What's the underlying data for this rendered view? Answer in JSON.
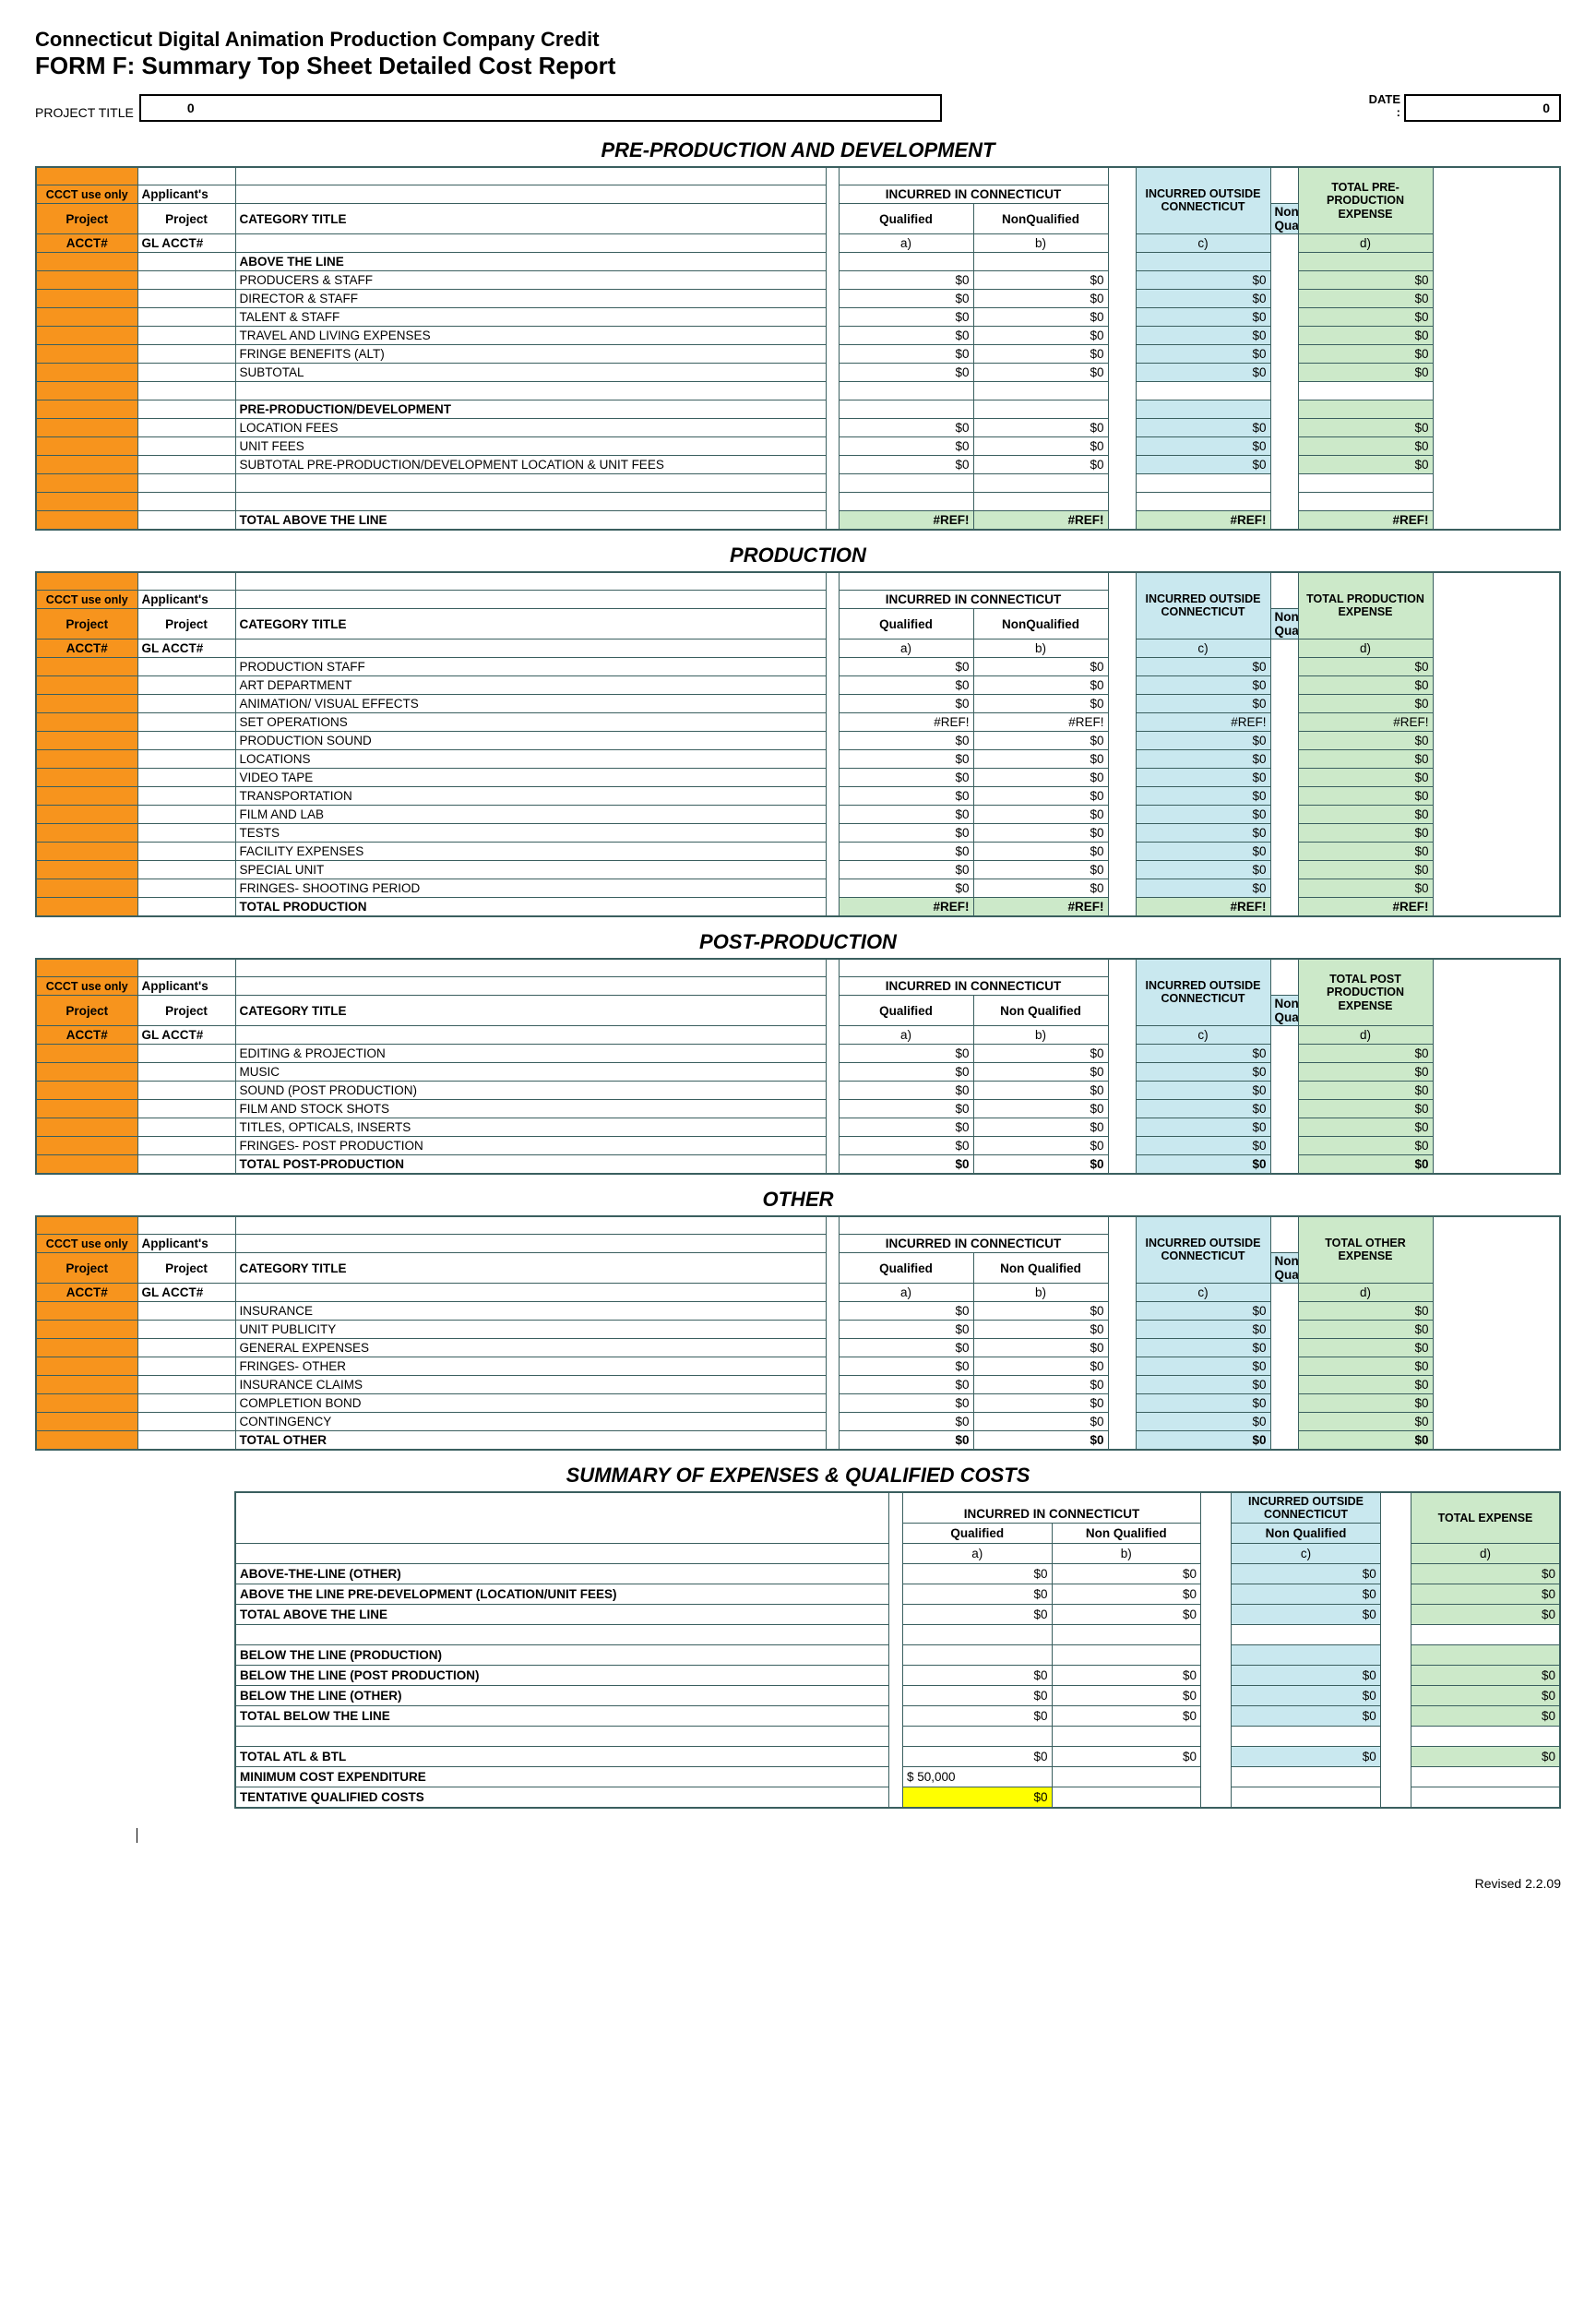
{
  "header": {
    "line1": "Connecticut Digital Animation Production Company Credit",
    "line2": "FORM F:  Summary Top Sheet Detailed Cost Report",
    "project_title_label": "PROJECT TITLE",
    "project_title_value": "0",
    "date_label": "DATE:",
    "date_value": "0"
  },
  "labels": {
    "ccct": "CCCT use only",
    "applicants": "Applicant's",
    "project": "Project",
    "acct": "ACCT#",
    "gl_acct": "GL ACCT#",
    "category_title": "CATEGORY TITLE",
    "in_ct": "INCURRED IN CONNECTICUT",
    "qualified": "Qualified",
    "nonqualified": "NonQualified",
    "nonqualified_sp": "Non Qualified",
    "out_ct": "INCURRED OUTSIDE CONNECTICUT",
    "a": "a)",
    "b": "b)",
    "c": "c)",
    "d": "d)"
  },
  "zero": "$0",
  "ref": "#REF!",
  "sections": [
    {
      "title": "PRE-PRODUCTION AND DEVELOPMENT",
      "total_label": "TOTAL PRE-PRODUCTION EXPENSE",
      "nq_spaced": false,
      "blocks": [
        {
          "heading": "ABOVE THE LINE",
          "rows": [
            {
              "cat": "PRODUCERS & STAFF",
              "v": [
                "$0",
                "$0",
                "$0",
                "$0"
              ]
            },
            {
              "cat": "DIRECTOR & STAFF",
              "v": [
                "$0",
                "$0",
                "$0",
                "$0"
              ]
            },
            {
              "cat": "TALENT & STAFF",
              "v": [
                "$0",
                "$0",
                "$0",
                "$0"
              ]
            },
            {
              "cat": "TRAVEL AND LIVING EXPENSES",
              "v": [
                "$0",
                "$0",
                "$0",
                "$0"
              ]
            },
            {
              "cat": "FRINGE BENEFITS (ALT)",
              "v": [
                "$0",
                "$0",
                "$0",
                "$0"
              ]
            },
            {
              "cat": "SUBTOTAL",
              "v": [
                "$0",
                "$0",
                "$0",
                "$0"
              ]
            }
          ]
        },
        {
          "gap": true
        },
        {
          "heading": "PRE-PRODUCTION/DEVELOPMENT",
          "rows": [
            {
              "cat": "LOCATION FEES",
              "v": [
                "$0",
                "$0",
                "$0",
                "$0"
              ]
            },
            {
              "cat": "UNIT FEES",
              "v": [
                "$0",
                "$0",
                "$0",
                "$0"
              ]
            },
            {
              "cat": "SUBTOTAL PRE-PRODUCTION/DEVELOPMENT LOCATION & UNIT FEES",
              "v": [
                "$0",
                "$0",
                "$0",
                "$0"
              ]
            }
          ]
        },
        {
          "gap": true
        },
        {
          "gap": true
        },
        {
          "total_row": {
            "cat": "TOTAL ABOVE THE LINE",
            "v": [
              "#REF!",
              "#REF!",
              "#REF!",
              "#REF!"
            ],
            "green": true
          }
        }
      ]
    },
    {
      "title": "PRODUCTION",
      "total_label": "TOTAL PRODUCTION EXPENSE",
      "nq_spaced": false,
      "blocks": [
        {
          "rows": [
            {
              "cat": "PRODUCTION STAFF",
              "v": [
                "$0",
                "$0",
                "$0",
                "$0"
              ]
            },
            {
              "cat": "ART DEPARTMENT",
              "v": [
                "$0",
                "$0",
                "$0",
                "$0"
              ]
            },
            {
              "cat": "ANIMATION/ VISUAL EFFECTS",
              "v": [
                "$0",
                "$0",
                "$0",
                "$0"
              ]
            },
            {
              "cat": "SET OPERATIONS",
              "v": [
                "#REF!",
                "#REF!",
                "#REF!",
                "#REF!"
              ]
            },
            {
              "cat": "PRODUCTION SOUND",
              "v": [
                "$0",
                "$0",
                "$0",
                "$0"
              ]
            },
            {
              "cat": "LOCATIONS",
              "v": [
                "$0",
                "$0",
                "$0",
                "$0"
              ]
            },
            {
              "cat": "VIDEO TAPE",
              "v": [
                "$0",
                "$0",
                "$0",
                "$0"
              ]
            },
            {
              "cat": "TRANSPORTATION",
              "v": [
                "$0",
                "$0",
                "$0",
                "$0"
              ]
            },
            {
              "cat": "FILM AND LAB",
              "v": [
                "$0",
                "$0",
                "$0",
                "$0"
              ]
            },
            {
              "cat": "TESTS",
              "v": [
                "$0",
                "$0",
                "$0",
                "$0"
              ]
            },
            {
              "cat": "FACILITY EXPENSES",
              "v": [
                "$0",
                "$0",
                "$0",
                "$0"
              ]
            },
            {
              "cat": "SPECIAL UNIT",
              "v": [
                "$0",
                "$0",
                "$0",
                "$0"
              ]
            },
            {
              "cat": "FRINGES- SHOOTING PERIOD",
              "v": [
                "$0",
                "$0",
                "$0",
                "$0"
              ]
            }
          ]
        },
        {
          "total_row": {
            "cat": "TOTAL PRODUCTION",
            "v": [
              "#REF!",
              "#REF!",
              "#REF!",
              "#REF!"
            ],
            "green": true
          }
        }
      ]
    },
    {
      "title": "POST-PRODUCTION",
      "total_label": "TOTAL POST PRODUCTION EXPENSE",
      "nq_spaced": true,
      "blocks": [
        {
          "rows": [
            {
              "cat": "EDITING & PROJECTION",
              "v": [
                "$0",
                "$0",
                "$0",
                "$0"
              ]
            },
            {
              "cat": "MUSIC",
              "v": [
                "$0",
                "$0",
                "$0",
                "$0"
              ]
            },
            {
              "cat": "SOUND (POST PRODUCTION)",
              "v": [
                "$0",
                "$0",
                "$0",
                "$0"
              ]
            },
            {
              "cat": "FILM AND STOCK SHOTS",
              "v": [
                "$0",
                "$0",
                "$0",
                "$0"
              ]
            },
            {
              "cat": "TITLES, OPTICALS, INSERTS",
              "v": [
                "$0",
                "$0",
                "$0",
                "$0"
              ]
            },
            {
              "cat": "FRINGES- POST PRODUCTION",
              "v": [
                "$0",
                "$0",
                "$0",
                "$0"
              ]
            }
          ]
        },
        {
          "total_row": {
            "cat": "TOTAL POST-PRODUCTION",
            "v": [
              "$0",
              "$0",
              "$0",
              "$0"
            ],
            "green": false
          }
        }
      ]
    },
    {
      "title": "OTHER",
      "total_label": "TOTAL OTHER EXPENSE",
      "nq_spaced": true,
      "blocks": [
        {
          "rows": [
            {
              "cat": "INSURANCE",
              "v": [
                "$0",
                "$0",
                "$0",
                "$0"
              ]
            },
            {
              "cat": "UNIT PUBLICITY",
              "v": [
                "$0",
                "$0",
                "$0",
                "$0"
              ]
            },
            {
              "cat": "GENERAL EXPENSES",
              "v": [
                "$0",
                "$0",
                "$0",
                "$0"
              ]
            },
            {
              "cat": "FRINGES- OTHER",
              "v": [
                "$0",
                "$0",
                "$0",
                "$0"
              ]
            },
            {
              "cat": "INSURANCE CLAIMS",
              "v": [
                "$0",
                "$0",
                "$0",
                "$0"
              ]
            },
            {
              "cat": "COMPLETION BOND",
              "v": [
                "$0",
                "$0",
                "$0",
                "$0"
              ]
            },
            {
              "cat": "CONTINGENCY",
              "v": [
                "$0",
                "$0",
                "$0",
                "$0"
              ]
            }
          ]
        },
        {
          "total_row": {
            "cat": "TOTAL OTHER",
            "v": [
              "$0",
              "$0",
              "$0",
              "$0"
            ],
            "green": false
          }
        }
      ]
    }
  ],
  "summary": {
    "title": "SUMMARY OF EXPENSES & QUALIFIED COSTS",
    "total_label": "TOTAL EXPENSE",
    "rows": [
      {
        "cat": "ABOVE-THE-LINE (OTHER)",
        "b": true,
        "v": [
          "$0",
          "$0",
          "$0",
          "$0"
        ]
      },
      {
        "cat": "ABOVE THE LINE PRE-DEVELOPMENT (LOCATION/UNIT FEES)",
        "b": true,
        "v": [
          "$0",
          "$0",
          "$0",
          "$0"
        ]
      },
      {
        "cat": "TOTAL ABOVE THE LINE",
        "b": true,
        "v": [
          "$0",
          "$0",
          "$0",
          "$0"
        ]
      },
      {
        "gap": true
      },
      {
        "cat": "BELOW THE LINE (PRODUCTION)",
        "b": true,
        "v": [
          "",
          "",
          "",
          ""
        ]
      },
      {
        "cat": "BELOW THE LINE (POST PRODUCTION)",
        "b": true,
        "v": [
          "$0",
          "$0",
          "$0",
          "$0"
        ]
      },
      {
        "cat": "BELOW THE LINE (OTHER)",
        "b": true,
        "v": [
          "$0",
          "$0",
          "$0",
          "$0"
        ]
      },
      {
        "cat": "TOTAL BELOW THE LINE",
        "b": true,
        "v": [
          "$0",
          "$0",
          "$0",
          "$0"
        ]
      },
      {
        "gap": true
      },
      {
        "cat": "TOTAL ATL & BTL",
        "b": true,
        "v": [
          "$0",
          "$0",
          "$0",
          "$0"
        ]
      },
      {
        "cat": "MINIMUM COST EXPENDITURE",
        "b": true,
        "v": [
          "$        50,000",
          "",
          "",
          ""
        ],
        "onlyA": true
      },
      {
        "cat": "TENTATIVE QUALIFIED COSTS",
        "b": true,
        "v": [
          "$0",
          "",
          "",
          ""
        ],
        "yellowA": true,
        "onlyA": true
      }
    ]
  },
  "footer": "Revised 2.2.09"
}
